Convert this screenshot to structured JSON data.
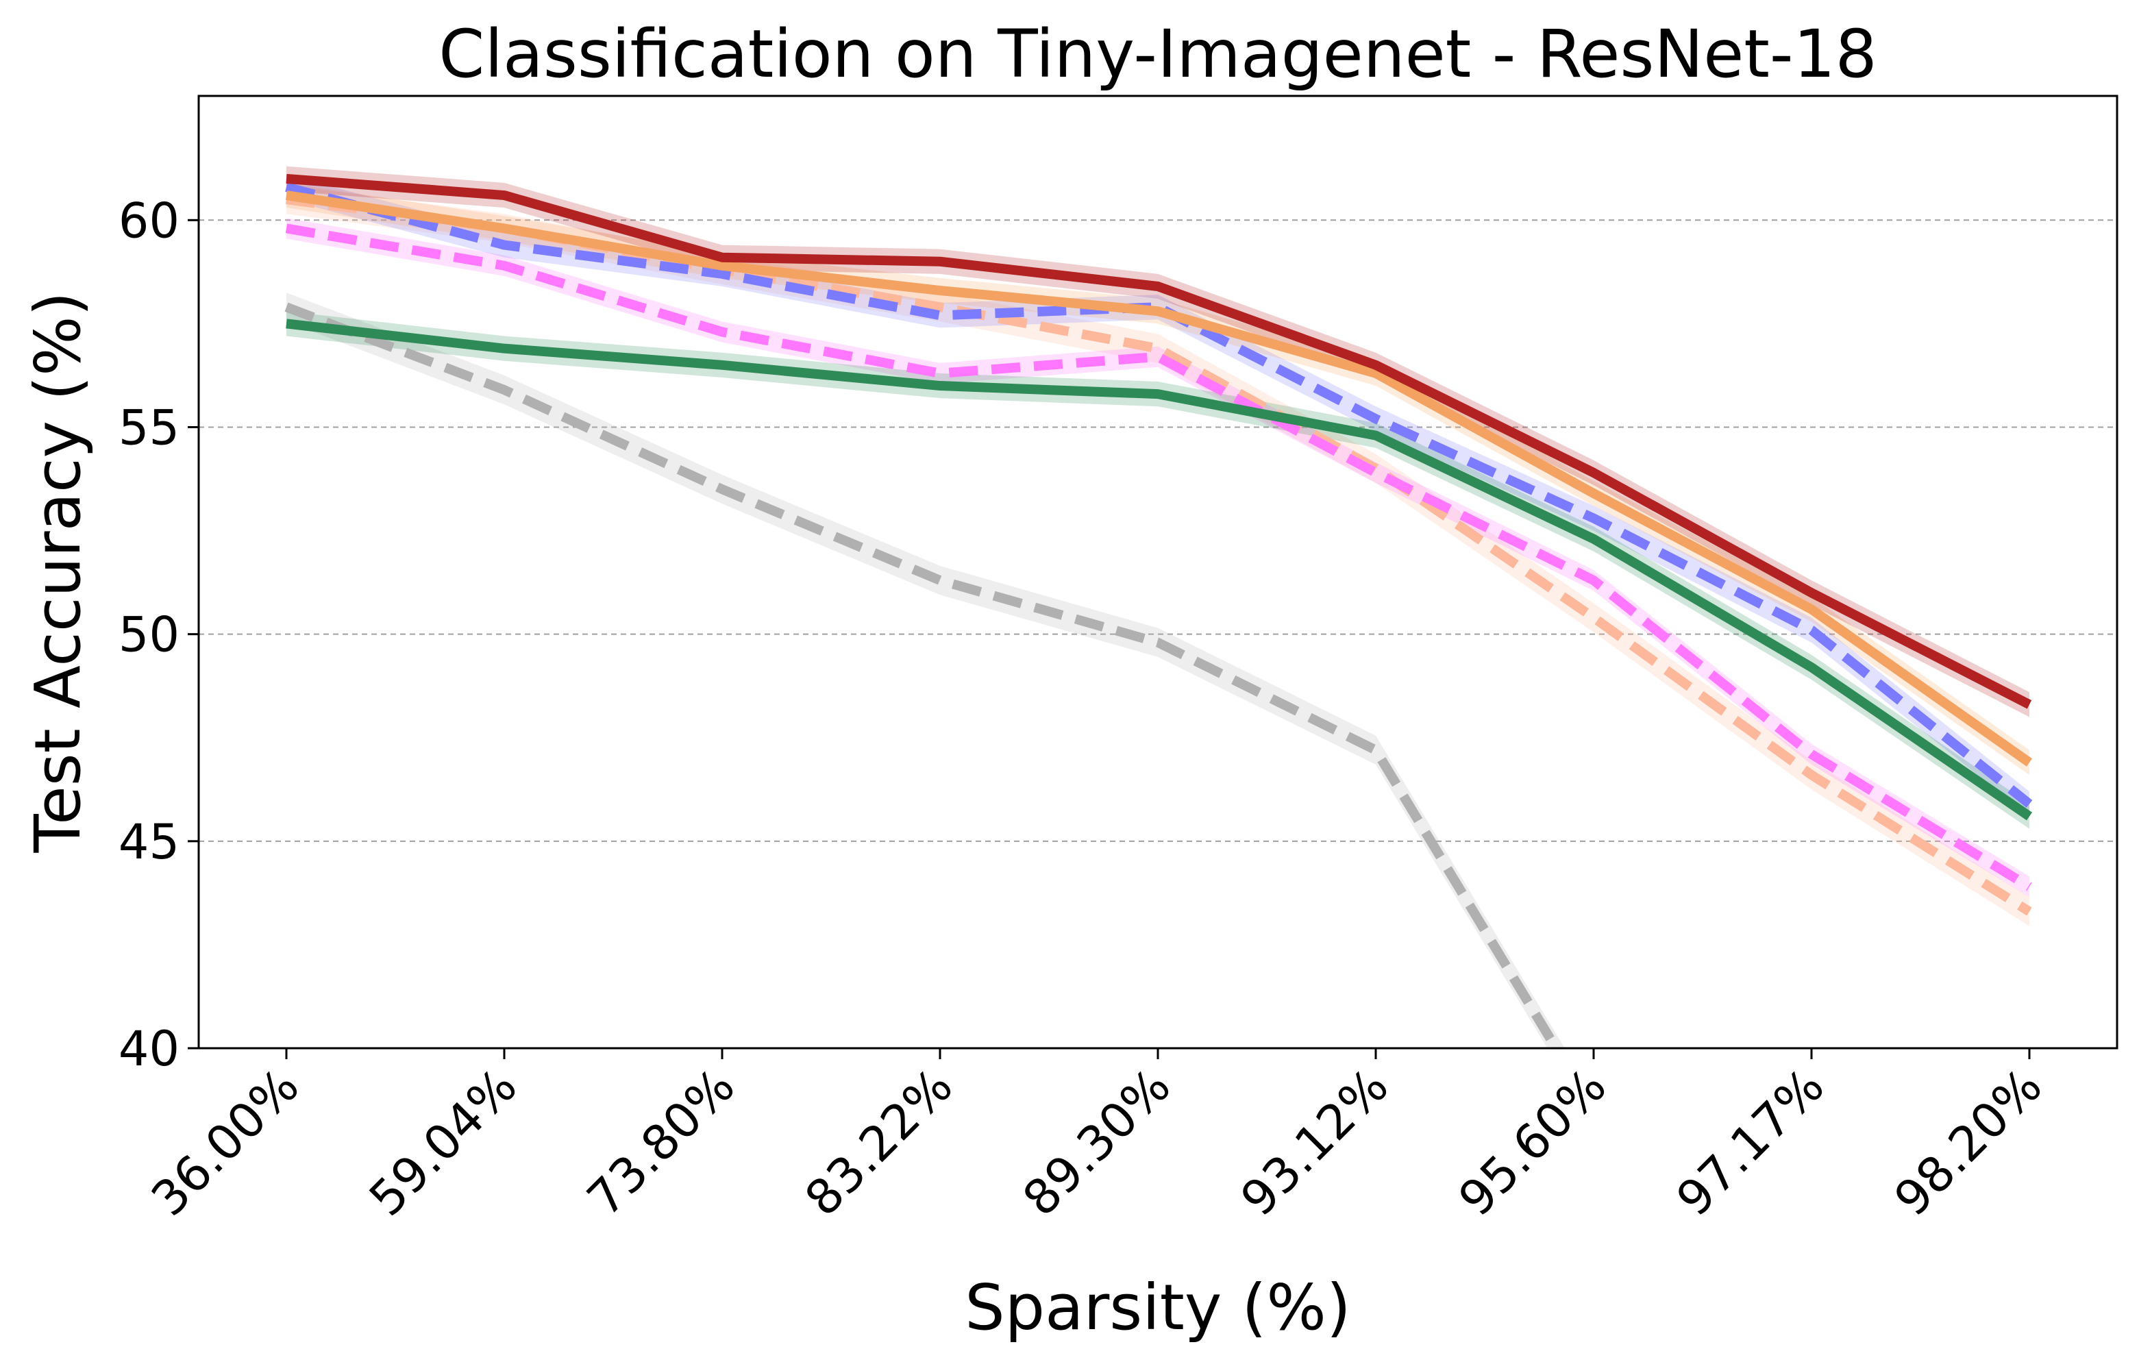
{
  "chart_data": {
    "type": "line",
    "title": "Classification on Tiny-Imagenet - ResNet-18",
    "xlabel": "Sparsity (%)",
    "ylabel": "Test Accuracy (%)",
    "categories": [
      "36.00%",
      "59.04%",
      "73.80%",
      "83.22%",
      "89.30%",
      "93.12%",
      "95.60%",
      "97.17%",
      "98.20%"
    ],
    "ylim": [
      40,
      63
    ],
    "yticks": [
      "40",
      "45",
      "50",
      "55",
      "60"
    ],
    "grid": "horizontal-dashed",
    "series": [
      {
        "color": "#b0b0b0",
        "dashed": true,
        "band": 0.35,
        "values": [
          57.9,
          55.9,
          53.5,
          51.3,
          49.8,
          47.2,
          38.5,
          null,
          null
        ]
      },
      {
        "color": "#fdb79a",
        "dashed": true,
        "band": 0.35,
        "values": [
          60.5,
          59.8,
          58.8,
          57.9,
          56.9,
          54.0,
          50.4,
          46.6,
          43.3
        ]
      },
      {
        "color": "#ff77ff",
        "dashed": true,
        "band": 0.25,
        "values": [
          59.8,
          58.9,
          57.3,
          56.3,
          56.7,
          53.9,
          51.3,
          47.1,
          43.9
        ]
      },
      {
        "color": "#7b7bff",
        "dashed": true,
        "band": 0.3,
        "values": [
          60.8,
          59.4,
          58.7,
          57.7,
          57.9,
          55.2,
          52.8,
          50.1,
          45.9
        ]
      },
      {
        "color": "#2e8b57",
        "dashed": false,
        "band": 0.3,
        "values": [
          57.5,
          56.9,
          56.5,
          56.0,
          55.8,
          54.8,
          52.3,
          49.2,
          45.6
        ]
      },
      {
        "color": "#f4a261",
        "dashed": false,
        "band": 0.3,
        "values": [
          60.6,
          59.8,
          58.9,
          58.3,
          57.8,
          56.3,
          53.4,
          50.6,
          46.9
        ]
      },
      {
        "color": "#b22222",
        "dashed": false,
        "band": 0.3,
        "values": [
          61.0,
          60.6,
          59.1,
          59.0,
          58.4,
          56.5,
          53.9,
          51.0,
          48.3
        ]
      }
    ]
  }
}
